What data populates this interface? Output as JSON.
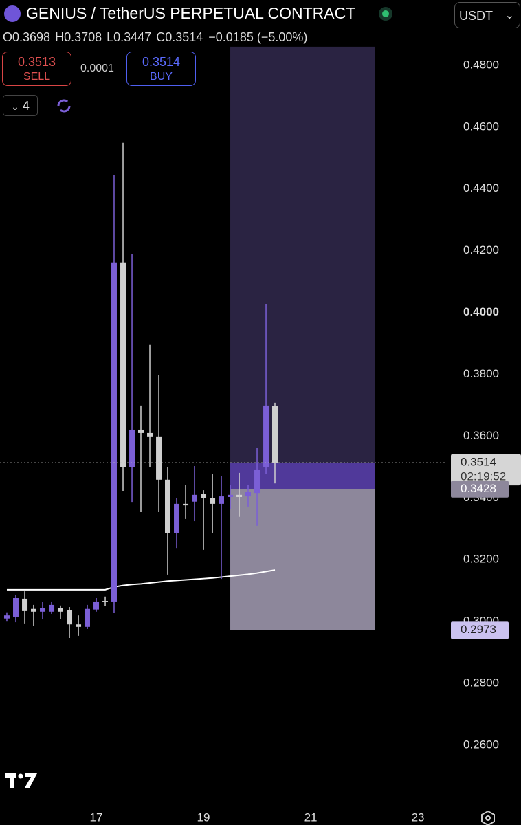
{
  "header": {
    "title": "GENIUS / TetherUS PERPETUAL CONTRACT",
    "quote_currency": "USDT",
    "ohlc": [
      {
        "label": "O",
        "value": "0.3698"
      },
      {
        "label": "H",
        "value": "0.3708"
      },
      {
        "label": "L",
        "value": "0.3447"
      },
      {
        "label": "C",
        "value": "0.3514"
      }
    ],
    "change": "−0.0185 (−5.00%)",
    "sell": {
      "price": "0.3513",
      "label": "SELL"
    },
    "spread": "0.0001",
    "buy": {
      "price": "0.3514",
      "label": "BUY"
    },
    "indicator_count": "4"
  },
  "chart_data": {
    "type": "candlestick",
    "bull_color": "#7b5fd6",
    "bear_color": "#cfcfcf",
    "ma_color": "#ffffff",
    "x": [
      15.333,
      15.5,
      15.667,
      15.833,
      16.0,
      16.167,
      16.333,
      16.5,
      16.667,
      16.833,
      17.0,
      17.167,
      17.333,
      17.5,
      17.667,
      17.833,
      18.0,
      18.167,
      18.333,
      18.5,
      18.667,
      18.833,
      19.0,
      19.167,
      19.333,
      19.5,
      19.667,
      19.833,
      20.0,
      20.167,
      20.333
    ],
    "open": [
      0.301,
      0.3016,
      0.3074,
      0.3041,
      0.3032,
      0.3032,
      0.3043,
      0.3036,
      0.2991,
      0.2983,
      0.3039,
      0.3067,
      0.3065,
      0.4162,
      0.3499,
      0.3621,
      0.361,
      0.3599,
      0.3459,
      0.3287,
      0.3381,
      0.3388,
      0.3414,
      0.3399,
      0.3381,
      0.3403,
      0.341,
      0.3405,
      0.3416,
      0.3499,
      0.3698
    ],
    "high": [
      0.303,
      0.3087,
      0.3098,
      0.3054,
      0.3063,
      0.3065,
      0.3052,
      0.3047,
      0.302,
      0.3054,
      0.3076,
      0.3081,
      0.4444,
      0.4549,
      0.4188,
      0.3699,
      0.3895,
      0.3799,
      0.3499,
      0.3399,
      0.3443,
      0.3503,
      0.3425,
      0.3477,
      0.3472,
      0.3443,
      0.3481,
      0.3443,
      0.3561,
      0.4028,
      0.3708
    ],
    "low": [
      0.3,
      0.2998,
      0.2994,
      0.2987,
      0.3007,
      0.3025,
      0.3009,
      0.2947,
      0.2954,
      0.2976,
      0.3032,
      0.305,
      0.3027,
      0.3423,
      0.3387,
      0.3354,
      0.3499,
      0.3354,
      0.3152,
      0.3238,
      0.3332,
      0.3325,
      0.3232,
      0.3287,
      0.3138,
      0.3365,
      0.3339,
      0.3372,
      0.331,
      0.3477,
      0.3447
    ],
    "close": [
      0.302,
      0.3076,
      0.3034,
      0.3032,
      0.3043,
      0.3054,
      0.3032,
      0.2991,
      0.2983,
      0.3041,
      0.3065,
      0.3063,
      0.4162,
      0.3499,
      0.3621,
      0.361,
      0.3599,
      0.3459,
      0.3287,
      0.3381,
      0.3376,
      0.341,
      0.3399,
      0.3381,
      0.3405,
      0.341,
      0.3403,
      0.3419,
      0.3492,
      0.3699,
      0.3514
    ],
    "ma_values": [
      0.3103,
      0.3103,
      0.3103,
      0.3103,
      0.3103,
      0.3103,
      0.3103,
      0.3103,
      0.3103,
      0.3103,
      0.3103,
      0.3103,
      0.3112,
      0.3117,
      0.312,
      0.3122,
      0.3125,
      0.3128,
      0.3131,
      0.3133,
      0.3135,
      0.3137,
      0.3139,
      0.3141,
      0.3144,
      0.3147,
      0.315,
      0.3153,
      0.3157,
      0.3162,
      0.3167
    ],
    "xlim": [
      15.205,
      23.538
    ],
    "xticks": [
      17,
      19,
      21,
      23
    ],
    "ylim": [
      0.252,
      0.5011
    ],
    "yticks": [
      {
        "value": 0.26,
        "label": "0.2600"
      },
      {
        "value": 0.28,
        "label": "0.2800"
      },
      {
        "value": 0.3,
        "label": "0.3000"
      },
      {
        "value": 0.32,
        "label": "0.3200"
      },
      {
        "value": 0.34,
        "label": "0.3400"
      },
      {
        "value": 0.36,
        "label": "0.3600"
      },
      {
        "value": 0.38,
        "label": "0.3800"
      },
      {
        "value": 0.4,
        "label": "0.4000",
        "bold": true
      },
      {
        "value": 0.42,
        "label": "0.4200"
      },
      {
        "value": 0.44,
        "label": "0.4400"
      },
      {
        "value": 0.46,
        "label": "0.4600"
      },
      {
        "value": 0.48,
        "label": "0.4800"
      }
    ],
    "last_price": 0.3514,
    "countdown": "02:19:52",
    "position": {
      "start": 19.5,
      "end": 22.2,
      "target": 0.486,
      "entry": 0.3428,
      "stop": 0.2973
    }
  }
}
